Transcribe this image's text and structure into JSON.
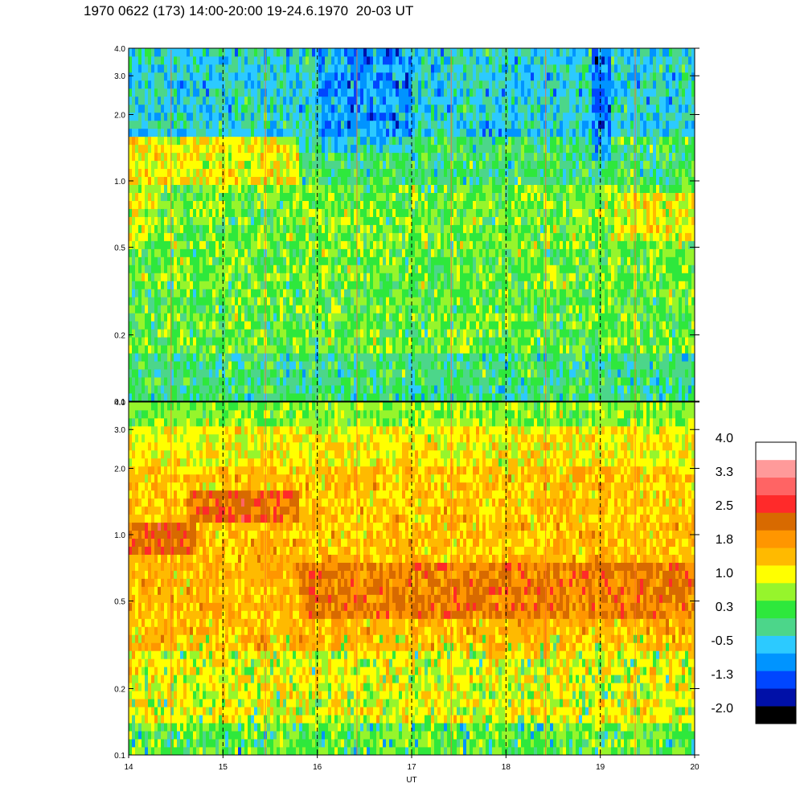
{
  "title": "1970 0622 (173) 14:00-20:00 19-24.6.1970  20-03 UT",
  "colors": {
    "palette": [
      "#000000",
      "#0010a8",
      "#0046ff",
      "#0094ff",
      "#2ccaff",
      "#4cd68a",
      "#2ee83c",
      "#96f52c",
      "#ffff00",
      "#ffba00",
      "#ff9600",
      "#d86a00",
      "#ff2a2a",
      "#ff6464",
      "#ff9a9a",
      "#ffffff"
    ],
    "dashed_marker": "#000000",
    "spike_line": "#ff6a30"
  },
  "chart_data": [
    {
      "type": "heatmap",
      "panel": "upper",
      "x_range": [
        14,
        20
      ],
      "y_scale": "log",
      "y_range": [
        0.1,
        4.0
      ],
      "y_ticks": [
        "0.1",
        "0.2",
        "0.5",
        "1.0",
        "2.0",
        "3.0",
        "4.0"
      ],
      "dashed_times": [
        15,
        16,
        17,
        18,
        19
      ],
      "dominant_level_low_freq": 0.3,
      "dominant_level_high_freq": -0.5,
      "enhanced_band": {
        "x": [
          14.0,
          15.8
        ],
        "y": [
          1.0,
          1.6
        ],
        "level": 1.8
      }
    },
    {
      "type": "heatmap",
      "panel": "lower",
      "x_range": [
        14,
        20
      ],
      "y_scale": "log",
      "y_range": [
        0.1,
        4.0
      ],
      "y_ticks": [
        "0.1",
        "0.2",
        "0.5",
        "1.0",
        "2.0",
        "3.0",
        "4.0"
      ],
      "dashed_times": [
        15,
        16,
        17,
        18,
        19
      ],
      "xlabel": "UT",
      "x_ticks": [
        "14",
        "15",
        "16",
        "17",
        "18",
        "19",
        "20"
      ],
      "dominant_level": 1.8,
      "enhanced_band": [
        {
          "x": [
            14.0,
            14.7
          ],
          "y": [
            0.8,
            1.1
          ],
          "level": 2.3
        },
        {
          "x": [
            14.7,
            15.8
          ],
          "y": [
            1.1,
            1.6
          ],
          "level": 2.3
        },
        {
          "x": [
            15.8,
            20.0
          ],
          "y": [
            0.4,
            0.7
          ],
          "level": 2.2
        }
      ]
    }
  ],
  "colorbar": {
    "labels": [
      "4.0",
      "3.3",
      "2.5",
      "1.8",
      "1.0",
      "0.3",
      "-0.5",
      "-1.3",
      "-2.0"
    ],
    "levels": 16
  }
}
